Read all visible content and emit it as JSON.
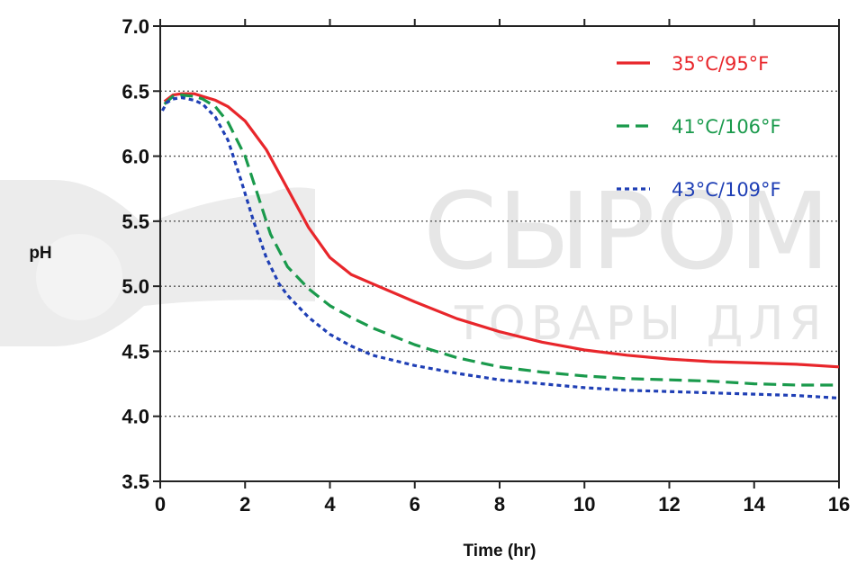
{
  "watermark": {
    "line1": "СЫРОМ",
    "line2": "ТОВАРЫ ДЛЯ"
  },
  "chart_data": {
    "type": "line",
    "title": "",
    "xlabel": "Time (hr)",
    "ylabel": "pH",
    "xlim": [
      0,
      16
    ],
    "ylim": [
      3.5,
      7.0
    ],
    "x_ticks": [
      "0",
      "2",
      "4",
      "6",
      "8",
      "10",
      "12",
      "14",
      "16"
    ],
    "y_ticks": [
      "3.5",
      "4.0",
      "4.5",
      "5.0",
      "5.5",
      "6.0",
      "6.5",
      "7.0"
    ],
    "grid": "horizontal dotted",
    "legend_position": "top-right",
    "series": [
      {
        "name": "35°C/95°F",
        "color": "#e8262b",
        "style": "solid",
        "x": [
          0.1,
          0.3,
          0.5,
          0.8,
          1.0,
          1.3,
          1.6,
          2.0,
          2.5,
          3.0,
          3.5,
          4.0,
          4.5,
          5.0,
          6.0,
          7.0,
          8.0,
          9.0,
          10.0,
          11.0,
          12.0,
          13.0,
          14.0,
          15.0,
          16.0
        ],
        "y": [
          6.42,
          6.47,
          6.48,
          6.48,
          6.46,
          6.43,
          6.38,
          6.27,
          6.05,
          5.75,
          5.45,
          5.22,
          5.09,
          5.02,
          4.88,
          4.75,
          4.65,
          4.57,
          4.51,
          4.47,
          4.44,
          4.42,
          4.41,
          4.4,
          4.38
        ]
      },
      {
        "name": "41°C/106°F",
        "color": "#1a9a4c",
        "style": "dashed",
        "x": [
          0.1,
          0.3,
          0.5,
          0.8,
          1.0,
          1.3,
          1.6,
          2.0,
          2.3,
          2.6,
          3.0,
          3.5,
          4.0,
          4.5,
          5.0,
          6.0,
          7.0,
          8.0,
          9.0,
          10.0,
          11.0,
          12.0,
          13.0,
          14.0,
          15.0,
          16.0
        ],
        "y": [
          6.4,
          6.46,
          6.47,
          6.46,
          6.44,
          6.38,
          6.26,
          6.0,
          5.7,
          5.4,
          5.15,
          4.98,
          4.85,
          4.76,
          4.68,
          4.55,
          4.45,
          4.38,
          4.34,
          4.31,
          4.29,
          4.28,
          4.27,
          4.25,
          4.24,
          4.24
        ]
      },
      {
        "name": "43°C/109°F",
        "color": "#1f3fb5",
        "style": "dotted",
        "x": [
          0.05,
          0.15,
          0.3,
          0.5,
          0.8,
          1.0,
          1.3,
          1.6,
          1.9,
          2.2,
          2.5,
          2.8,
          3.0,
          3.5,
          4.0,
          4.5,
          5.0,
          6.0,
          7.0,
          8.0,
          9.0,
          10.0,
          11.0,
          12.0,
          13.0,
          14.0,
          15.0,
          16.0
        ],
        "y": [
          6.35,
          6.41,
          6.44,
          6.45,
          6.43,
          6.4,
          6.3,
          6.12,
          5.82,
          5.5,
          5.22,
          5.02,
          4.93,
          4.76,
          4.63,
          4.54,
          4.47,
          4.39,
          4.33,
          4.28,
          4.25,
          4.22,
          4.2,
          4.19,
          4.18,
          4.17,
          4.16,
          4.14
        ]
      }
    ]
  }
}
